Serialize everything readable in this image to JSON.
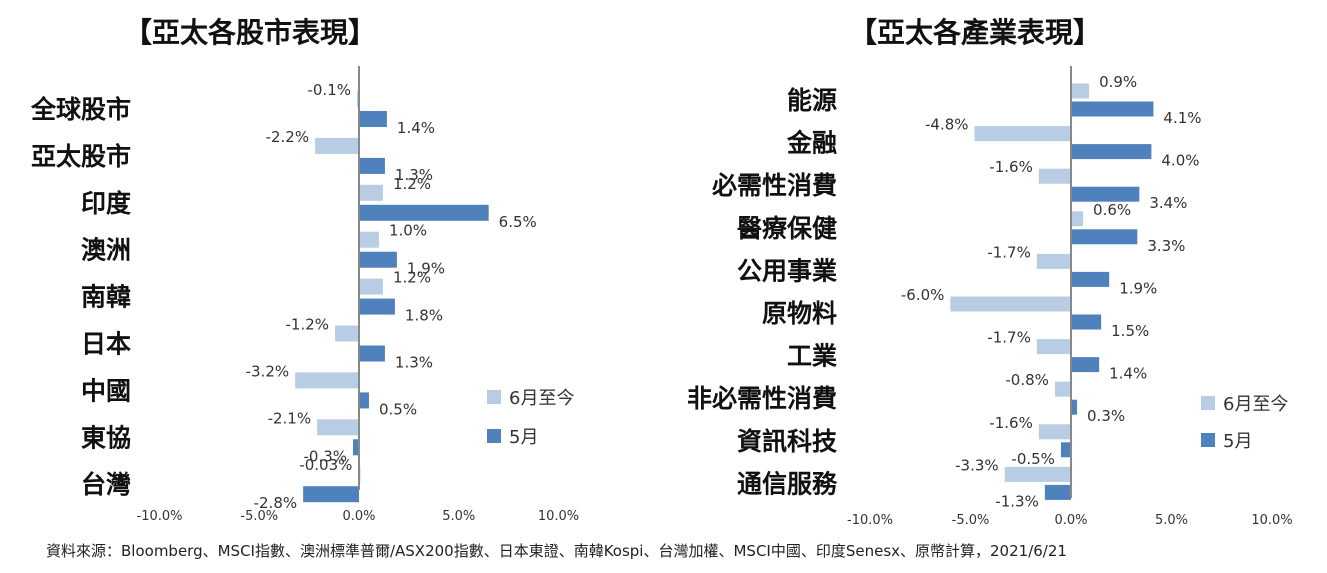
{
  "source_note": "資料來源：Bloomberg、MSCI指數、澳洲標準普爾/ASX200指數、日本東證、南韓Kospi、台灣加權、MSCI中國、印度Senesx、原幣計算，2021/6/21",
  "colors": {
    "ytd": "#b8cce4",
    "may": "#4f81bd",
    "axis": "#888888"
  },
  "chart_data": [
    {
      "type": "bar",
      "orientation": "horizontal",
      "title": "【亞太各股市表現】",
      "xlim": [
        -10,
        10
      ],
      "x_ticks": [
        -10,
        -5,
        0,
        5,
        10
      ],
      "x_tick_labels": [
        "-10.0%",
        "-5.0%",
        "0.0%",
        "5.0%",
        "10.0%"
      ],
      "legend_position": "right",
      "categories": [
        "全球股市",
        "亞太股市",
        "印度",
        "澳洲",
        "南韓",
        "日本",
        "中國",
        "東協",
        "台灣"
      ],
      "series": [
        {
          "name": "6月至今",
          "values": [
            -0.1,
            -2.2,
            1.2,
            1.0,
            1.2,
            -1.2,
            -3.2,
            -2.1,
            -0.03
          ],
          "labels": [
            "-0.1%",
            "-2.2%",
            "1.2%",
            "1.0%",
            "1.2%",
            "-1.2%",
            "-3.2%",
            "-2.1%",
            "-0.03%"
          ]
        },
        {
          "name": "5月",
          "values": [
            1.4,
            1.3,
            6.5,
            1.9,
            1.8,
            1.3,
            0.5,
            -0.3,
            -2.8
          ],
          "labels": [
            "1.4%",
            "1.3%",
            "6.5%",
            "1.9%",
            "1.8%",
            "1.3%",
            "0.5%",
            "-0.3%",
            "-2.8%"
          ]
        }
      ]
    },
    {
      "type": "bar",
      "orientation": "horizontal",
      "title": "【亞太各產業表現】",
      "xlim": [
        -10,
        10
      ],
      "x_ticks": [
        -10,
        -5,
        0,
        5,
        10
      ],
      "x_tick_labels": [
        "-10.0%",
        "-5.0%",
        "0.0%",
        "5.0%",
        "10.0%"
      ],
      "legend_position": "right",
      "categories": [
        "能源",
        "金融",
        "必需性消費",
        "醫療保健",
        "公用事業",
        "原物料",
        "工業",
        "非必需性消費",
        "資訊科技",
        "通信服務"
      ],
      "series": [
        {
          "name": "6月至今",
          "values": [
            0.9,
            -4.8,
            -1.6,
            0.6,
            -1.7,
            -6.0,
            -1.7,
            -0.8,
            -1.6,
            -3.3
          ],
          "labels": [
            "0.9%",
            "-4.8%",
            "-1.6%",
            "0.6%",
            "-1.7%",
            "-6.0%",
            "-1.7%",
            "-0.8%",
            "-1.6%",
            "-3.3%"
          ]
        },
        {
          "name": "5月",
          "values": [
            4.1,
            4.0,
            3.4,
            3.3,
            1.9,
            1.5,
            1.4,
            0.3,
            -0.5,
            -1.3
          ],
          "labels": [
            "4.1%",
            "4.0%",
            "3.4%",
            "3.3%",
            "1.9%",
            "1.5%",
            "1.4%",
            "0.3%",
            "-0.5%",
            "-1.3%"
          ]
        }
      ]
    }
  ]
}
